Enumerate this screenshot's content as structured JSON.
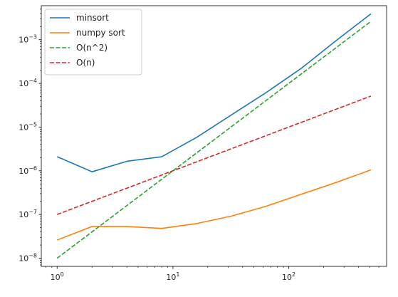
{
  "chart_data": {
    "type": "line",
    "xscale": "log",
    "yscale": "log",
    "xlim": [
      0.73,
      700
    ],
    "ylim": [
      6.5e-09,
      0.006
    ],
    "grid": false,
    "legend_position": "top-left",
    "title": "",
    "xlabel": "",
    "ylabel": "",
    "x": [
      1,
      2,
      4,
      8,
      16,
      32,
      64,
      128,
      256,
      512
    ],
    "series": [
      {
        "name": "minsort",
        "color": "#1f77b4",
        "dash": "solid",
        "values": [
          2.1e-06,
          9.5e-07,
          1.65e-06,
          2.1e-06,
          5.8e-06,
          1.9e-05,
          6.2e-05,
          0.00022,
          0.00095,
          0.0039
        ]
      },
      {
        "name": "numpy sort",
        "color": "#ff7f0e",
        "dash": "solid",
        "values": [
          2.6e-08,
          5.3e-08,
          5.3e-08,
          4.8e-08,
          6.2e-08,
          9.2e-08,
          1.55e-07,
          2.9e-07,
          5.4e-07,
          1.05e-06
        ]
      },
      {
        "name": "O(n^2)",
        "color": "#2ca02c",
        "dash": "dashed",
        "values": [
          1e-08,
          4e-08,
          1.6e-07,
          6.4e-07,
          2.56e-06,
          1.024e-05,
          4.096e-05,
          0.00016384,
          0.00065536,
          0.00262144
        ]
      },
      {
        "name": "O(n)",
        "color": "#d62728",
        "dash": "dashed",
        "values": [
          1e-07,
          2e-07,
          4e-07,
          8e-07,
          1.6e-06,
          3.2e-06,
          6.4e-06,
          1.28e-05,
          2.56e-05,
          5.12e-05
        ]
      }
    ],
    "x_ticks": [
      {
        "value": 1,
        "base": "10",
        "exp": "0"
      },
      {
        "value": 10,
        "base": "10",
        "exp": "1"
      },
      {
        "value": 100,
        "base": "10",
        "exp": "2"
      }
    ],
    "y_ticks": [
      {
        "value": 1e-08,
        "base": "10",
        "exp": "−8"
      },
      {
        "value": 1e-07,
        "base": "10",
        "exp": "−7"
      },
      {
        "value": 1e-06,
        "base": "10",
        "exp": "−6"
      },
      {
        "value": 1e-05,
        "base": "10",
        "exp": "−5"
      },
      {
        "value": 0.0001,
        "base": "10",
        "exp": "−4"
      },
      {
        "value": 0.001,
        "base": "10",
        "exp": "−3"
      }
    ]
  }
}
